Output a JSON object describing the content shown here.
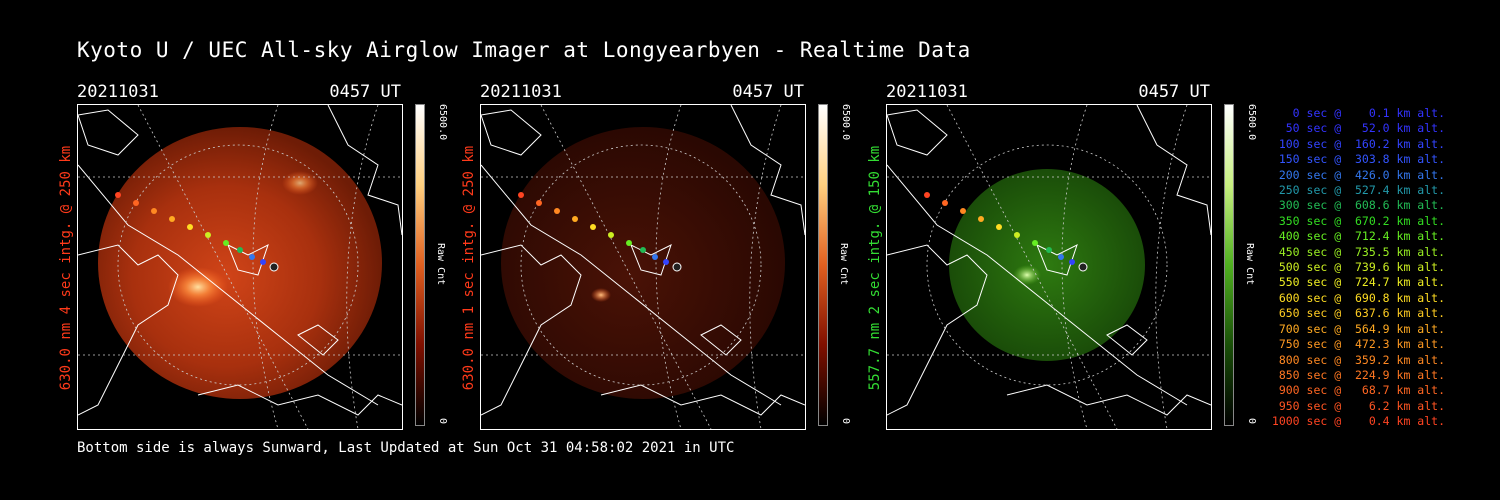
{
  "title": "Kyoto U / UEC All-sky Airglow Imager at Longyearbyen - Realtime Data",
  "footer": "Bottom side is always Sunward, Last Updated at Sun Oct 31 04:58:02 2021 in UTC",
  "panels": [
    {
      "date": "20211031",
      "time": "0457 UT",
      "ylabel": "630.0 nm 4 sec intg. @ 250 km",
      "label_color": "#ff3a1a",
      "cb_max": "6500.0",
      "cb_min": "0",
      "cb_unit": "Raw Cnt",
      "brightness": "high",
      "tint": "red"
    },
    {
      "date": "20211031",
      "time": "0457 UT",
      "ylabel": "630.0 nm 1 sec intg. @ 250 km",
      "label_color": "#ff3a1a",
      "cb_max": "6500.0",
      "cb_min": "0",
      "cb_unit": "Raw Cnt",
      "brightness": "low",
      "tint": "red"
    },
    {
      "date": "20211031",
      "time": "0457 UT",
      "ylabel": "557.7 nm 2 sec intg. @ 150 km",
      "label_color": "#33dd33",
      "cb_max": "6500.0",
      "cb_min": "0",
      "cb_unit": "Raw Cnt",
      "brightness": "medium",
      "tint": "green"
    }
  ],
  "legend": [
    {
      "text": "   0 sec @    0.1 km alt.",
      "color": "#3333ff"
    },
    {
      "text": "  50 sec @   52.0 km alt.",
      "color": "#3333ff"
    },
    {
      "text": " 100 sec @  160.2 km alt.",
      "color": "#3344ff"
    },
    {
      "text": " 150 sec @  303.8 km alt.",
      "color": "#3355ff"
    },
    {
      "text": " 200 sec @  426.0 km alt.",
      "color": "#3377ee"
    },
    {
      "text": " 250 sec @  527.4 km alt.",
      "color": "#2299aa"
    },
    {
      "text": " 300 sec @  608.6 km alt.",
      "color": "#22bb55"
    },
    {
      "text": " 350 sec @  670.2 km alt.",
      "color": "#33dd22"
    },
    {
      "text": " 400 sec @  712.4 km alt.",
      "color": "#66ee22"
    },
    {
      "text": " 450 sec @  735.5 km alt.",
      "color": "#99ee22"
    },
    {
      "text": " 500 sec @  739.6 km alt.",
      "color": "#ccee22"
    },
    {
      "text": " 550 sec @  724.7 km alt.",
      "color": "#eeee22"
    },
    {
      "text": " 600 sec @  690.8 km alt.",
      "color": "#ffdd22"
    },
    {
      "text": " 650 sec @  637.6 km alt.",
      "color": "#ffcc22"
    },
    {
      "text": " 700 sec @  564.9 km alt.",
      "color": "#ffaa22"
    },
    {
      "text": " 750 sec @  472.3 km alt.",
      "color": "#ff9922"
    },
    {
      "text": " 800 sec @  359.2 km alt.",
      "color": "#ff8822"
    },
    {
      "text": " 850 sec @  224.9 km alt.",
      "color": "#ff7722"
    },
    {
      "text": " 900 sec @   68.7 km alt.",
      "color": "#ff6622"
    },
    {
      "text": " 950 sec @    6.2 km alt.",
      "color": "#ff5522"
    },
    {
      "text": "1000 sec @    0.4 km alt.",
      "color": "#ff4422"
    }
  ]
}
